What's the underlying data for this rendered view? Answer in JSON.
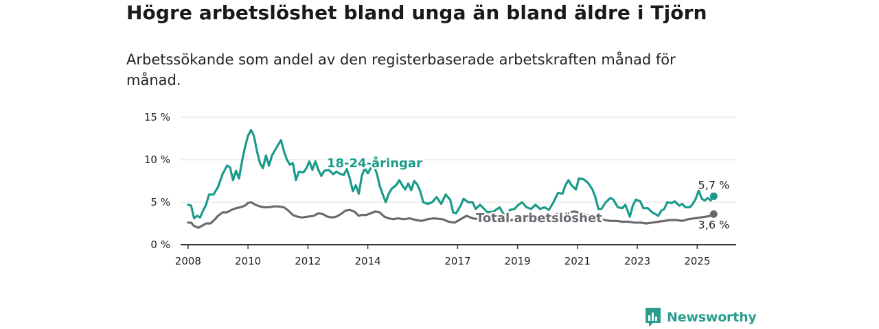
{
  "title": "Högre arbetslöshet bland unga än bland äldre i Tjörn",
  "subtitle": "Arbetssökande som andel av den registerbaserade arbetskraften månad för månad.",
  "brand": {
    "name": "Newsworthy",
    "color": "#2a9d8f",
    "icon": "bar-chart-logo-icon"
  },
  "chart_data": {
    "type": "line",
    "title": "Högre arbetslöshet bland unga än bland äldre i Tjörn",
    "subtitle": "Arbetssökande som andel av den registerbaserade arbetskraften månad för månad.",
    "x_ticks": [
      "2008",
      "2010",
      "2012",
      "2014",
      "2017",
      "2019",
      "2021",
      "2023",
      "2025"
    ],
    "y_ticks": [
      "0 %",
      "5 %",
      "10 %",
      "15 %"
    ],
    "xlim": [
      2007.75,
      2026.3
    ],
    "ylim": [
      0,
      15
    ],
    "grid": true,
    "series": [
      {
        "name": "Total arbetslöshet",
        "color": "#6b6870",
        "end_label": "3,6 %",
        "points": [
          [
            2008.0,
            2.6
          ],
          [
            2008.1,
            2.6
          ],
          [
            2008.2,
            2.2
          ],
          [
            2008.35,
            2.0
          ],
          [
            2008.5,
            2.3
          ],
          [
            2008.6,
            2.5
          ],
          [
            2008.75,
            2.5
          ],
          [
            2008.9,
            3.0
          ],
          [
            2009.0,
            3.4
          ],
          [
            2009.15,
            3.8
          ],
          [
            2009.3,
            3.8
          ],
          [
            2009.45,
            4.1
          ],
          [
            2009.6,
            4.3
          ],
          [
            2009.75,
            4.4
          ],
          [
            2009.9,
            4.6
          ],
          [
            2010.0,
            4.9
          ],
          [
            2010.1,
            5.0
          ],
          [
            2010.25,
            4.7
          ],
          [
            2010.4,
            4.5
          ],
          [
            2010.55,
            4.4
          ],
          [
            2010.7,
            4.4
          ],
          [
            2010.85,
            4.5
          ],
          [
            2011.0,
            4.5
          ],
          [
            2011.2,
            4.4
          ],
          [
            2011.35,
            4.0
          ],
          [
            2011.5,
            3.5
          ],
          [
            2011.65,
            3.3
          ],
          [
            2011.8,
            3.2
          ],
          [
            2012.0,
            3.3
          ],
          [
            2012.2,
            3.4
          ],
          [
            2012.35,
            3.7
          ],
          [
            2012.5,
            3.6
          ],
          [
            2012.65,
            3.3
          ],
          [
            2012.8,
            3.2
          ],
          [
            2012.95,
            3.3
          ],
          [
            2013.1,
            3.6
          ],
          [
            2013.25,
            4.0
          ],
          [
            2013.4,
            4.1
          ],
          [
            2013.55,
            3.9
          ],
          [
            2013.7,
            3.4
          ],
          [
            2013.8,
            3.5
          ],
          [
            2013.95,
            3.5
          ],
          [
            2014.1,
            3.7
          ],
          [
            2014.25,
            3.9
          ],
          [
            2014.4,
            3.8
          ],
          [
            2014.55,
            3.3
          ],
          [
            2014.7,
            3.1
          ],
          [
            2014.85,
            3.0
          ],
          [
            2015.0,
            3.1
          ],
          [
            2015.2,
            3.0
          ],
          [
            2015.4,
            3.1
          ],
          [
            2015.6,
            2.9
          ],
          [
            2015.8,
            2.8
          ],
          [
            2016.0,
            3.0
          ],
          [
            2016.2,
            3.1
          ],
          [
            2016.5,
            3.0
          ],
          [
            2016.7,
            2.7
          ],
          [
            2016.9,
            2.6
          ],
          [
            2017.1,
            3.0
          ],
          [
            2017.3,
            3.4
          ],
          [
            2017.5,
            3.1
          ],
          [
            2017.7,
            3.0
          ],
          [
            2017.9,
            2.9
          ],
          [
            2018.1,
            2.8
          ],
          [
            2018.3,
            2.8
          ],
          [
            2018.5,
            2.7
          ],
          [
            2018.7,
            2.8
          ],
          [
            2018.9,
            3.0
          ],
          [
            2019.1,
            3.0
          ],
          [
            2019.3,
            2.9
          ],
          [
            2019.5,
            2.9
          ],
          [
            2019.7,
            2.8
          ],
          [
            2019.9,
            2.9
          ],
          [
            2020.1,
            3.2
          ],
          [
            2020.3,
            3.6
          ],
          [
            2020.5,
            3.7
          ],
          [
            2020.7,
            3.8
          ],
          [
            2020.9,
            3.9
          ],
          [
            2021.1,
            3.7
          ],
          [
            2021.3,
            3.5
          ],
          [
            2021.5,
            3.3
          ],
          [
            2021.7,
            3.1
          ],
          [
            2021.9,
            2.9
          ],
          [
            2022.1,
            2.8
          ],
          [
            2022.3,
            2.8
          ],
          [
            2022.5,
            2.7
          ],
          [
            2022.7,
            2.7
          ],
          [
            2022.9,
            2.6
          ],
          [
            2023.1,
            2.6
          ],
          [
            2023.3,
            2.5
          ],
          [
            2023.5,
            2.6
          ],
          [
            2023.7,
            2.7
          ],
          [
            2023.9,
            2.8
          ],
          [
            2024.1,
            2.9
          ],
          [
            2024.3,
            2.9
          ],
          [
            2024.5,
            2.8
          ],
          [
            2024.7,
            3.0
          ],
          [
            2024.9,
            3.1
          ],
          [
            2025.1,
            3.2
          ],
          [
            2025.3,
            3.3
          ],
          [
            2025.45,
            3.4
          ],
          [
            2025.55,
            3.6
          ]
        ]
      },
      {
        "name": "18-24-åringar",
        "color": "#1a9a8a",
        "end_label": "5,7 %",
        "points": [
          [
            2008.0,
            4.7
          ],
          [
            2008.1,
            4.6
          ],
          [
            2008.2,
            3.1
          ],
          [
            2008.3,
            3.4
          ],
          [
            2008.4,
            3.2
          ],
          [
            2008.5,
            4.0
          ],
          [
            2008.6,
            4.7
          ],
          [
            2008.7,
            5.9
          ],
          [
            2008.85,
            5.9
          ],
          [
            2009.0,
            6.8
          ],
          [
            2009.15,
            8.3
          ],
          [
            2009.3,
            9.3
          ],
          [
            2009.4,
            9.1
          ],
          [
            2009.5,
            7.6
          ],
          [
            2009.6,
            8.7
          ],
          [
            2009.7,
            7.8
          ],
          [
            2009.8,
            9.8
          ],
          [
            2009.9,
            11.5
          ],
          [
            2010.0,
            12.8
          ],
          [
            2010.1,
            13.5
          ],
          [
            2010.2,
            12.8
          ],
          [
            2010.3,
            11.0
          ],
          [
            2010.4,
            9.6
          ],
          [
            2010.5,
            9.0
          ],
          [
            2010.6,
            10.5
          ],
          [
            2010.7,
            9.3
          ],
          [
            2010.8,
            10.5
          ],
          [
            2010.95,
            11.4
          ],
          [
            2011.1,
            12.3
          ],
          [
            2011.2,
            11.0
          ],
          [
            2011.3,
            10.0
          ],
          [
            2011.4,
            9.4
          ],
          [
            2011.5,
            9.6
          ],
          [
            2011.6,
            7.6
          ],
          [
            2011.7,
            8.6
          ],
          [
            2011.85,
            8.5
          ],
          [
            2011.95,
            9.0
          ],
          [
            2012.05,
            9.8
          ],
          [
            2012.15,
            8.8
          ],
          [
            2012.25,
            9.8
          ],
          [
            2012.35,
            8.8
          ],
          [
            2012.45,
            8.1
          ],
          [
            2012.55,
            8.7
          ],
          [
            2012.7,
            8.8
          ],
          [
            2012.85,
            8.3
          ],
          [
            2012.95,
            8.6
          ],
          [
            2013.1,
            8.3
          ],
          [
            2013.2,
            8.2
          ],
          [
            2013.3,
            8.9
          ],
          [
            2013.4,
            7.8
          ],
          [
            2013.5,
            6.3
          ],
          [
            2013.6,
            7.0
          ],
          [
            2013.7,
            6.0
          ],
          [
            2013.8,
            8.1
          ],
          [
            2013.9,
            9.0
          ],
          [
            2014.0,
            8.4
          ],
          [
            2014.1,
            9.0
          ],
          [
            2014.2,
            9.3
          ],
          [
            2014.3,
            8.4
          ],
          [
            2014.4,
            6.9
          ],
          [
            2014.5,
            5.9
          ],
          [
            2014.6,
            5.0
          ],
          [
            2014.7,
            6.0
          ],
          [
            2014.8,
            6.6
          ],
          [
            2014.95,
            7.0
          ],
          [
            2015.05,
            7.6
          ],
          [
            2015.15,
            7.0
          ],
          [
            2015.25,
            6.5
          ],
          [
            2015.35,
            7.2
          ],
          [
            2015.45,
            6.4
          ],
          [
            2015.55,
            7.5
          ],
          [
            2015.65,
            7.1
          ],
          [
            2015.75,
            6.3
          ],
          [
            2015.85,
            5.0
          ],
          [
            2016.0,
            4.8
          ],
          [
            2016.15,
            5.0
          ],
          [
            2016.3,
            5.6
          ],
          [
            2016.45,
            4.8
          ],
          [
            2016.6,
            5.9
          ],
          [
            2016.75,
            5.3
          ],
          [
            2016.85,
            3.8
          ],
          [
            2016.95,
            3.7
          ],
          [
            2017.1,
            4.6
          ],
          [
            2017.2,
            5.4
          ],
          [
            2017.35,
            5.0
          ],
          [
            2017.5,
            5.0
          ],
          [
            2017.6,
            4.2
          ],
          [
            2017.75,
            4.7
          ],
          [
            2018.0,
            3.8
          ],
          [
            2018.2,
            3.9
          ],
          [
            2018.4,
            4.4
          ],
          [
            2018.6,
            3.2
          ],
          [
            2018.75,
            4.1
          ],
          [
            2018.9,
            4.2
          ],
          [
            2019.0,
            4.6
          ],
          [
            2019.15,
            5.0
          ],
          [
            2019.3,
            4.4
          ],
          [
            2019.45,
            4.2
          ],
          [
            2019.6,
            4.7
          ],
          [
            2019.75,
            4.2
          ],
          [
            2019.9,
            4.4
          ],
          [
            2020.05,
            4.1
          ],
          [
            2020.2,
            5.0
          ],
          [
            2020.35,
            6.1
          ],
          [
            2020.5,
            6.0
          ],
          [
            2020.6,
            7.0
          ],
          [
            2020.7,
            7.6
          ],
          [
            2020.8,
            7.0
          ],
          [
            2020.95,
            6.5
          ],
          [
            2021.05,
            7.8
          ],
          [
            2021.2,
            7.7
          ],
          [
            2021.35,
            7.3
          ],
          [
            2021.5,
            6.5
          ],
          [
            2021.6,
            5.6
          ],
          [
            2021.7,
            4.2
          ],
          [
            2021.8,
            4.2
          ],
          [
            2021.95,
            5.0
          ],
          [
            2022.1,
            5.5
          ],
          [
            2022.2,
            5.3
          ],
          [
            2022.35,
            4.4
          ],
          [
            2022.5,
            4.3
          ],
          [
            2022.6,
            4.7
          ],
          [
            2022.75,
            3.3
          ],
          [
            2022.85,
            4.6
          ],
          [
            2022.95,
            5.3
          ],
          [
            2023.1,
            5.1
          ],
          [
            2023.2,
            4.3
          ],
          [
            2023.35,
            4.3
          ],
          [
            2023.5,
            3.8
          ],
          [
            2023.6,
            3.6
          ],
          [
            2023.7,
            3.4
          ],
          [
            2023.8,
            4.0
          ],
          [
            2023.9,
            4.2
          ],
          [
            2024.0,
            5.0
          ],
          [
            2024.15,
            4.9
          ],
          [
            2024.25,
            5.1
          ],
          [
            2024.4,
            4.6
          ],
          [
            2024.5,
            4.8
          ],
          [
            2024.6,
            4.4
          ],
          [
            2024.75,
            4.4
          ],
          [
            2024.85,
            4.8
          ],
          [
            2024.95,
            5.4
          ],
          [
            2025.05,
            6.4
          ],
          [
            2025.15,
            5.4
          ],
          [
            2025.25,
            5.2
          ],
          [
            2025.35,
            5.5
          ],
          [
            2025.45,
            5.2
          ],
          [
            2025.55,
            5.7
          ]
        ]
      }
    ]
  }
}
